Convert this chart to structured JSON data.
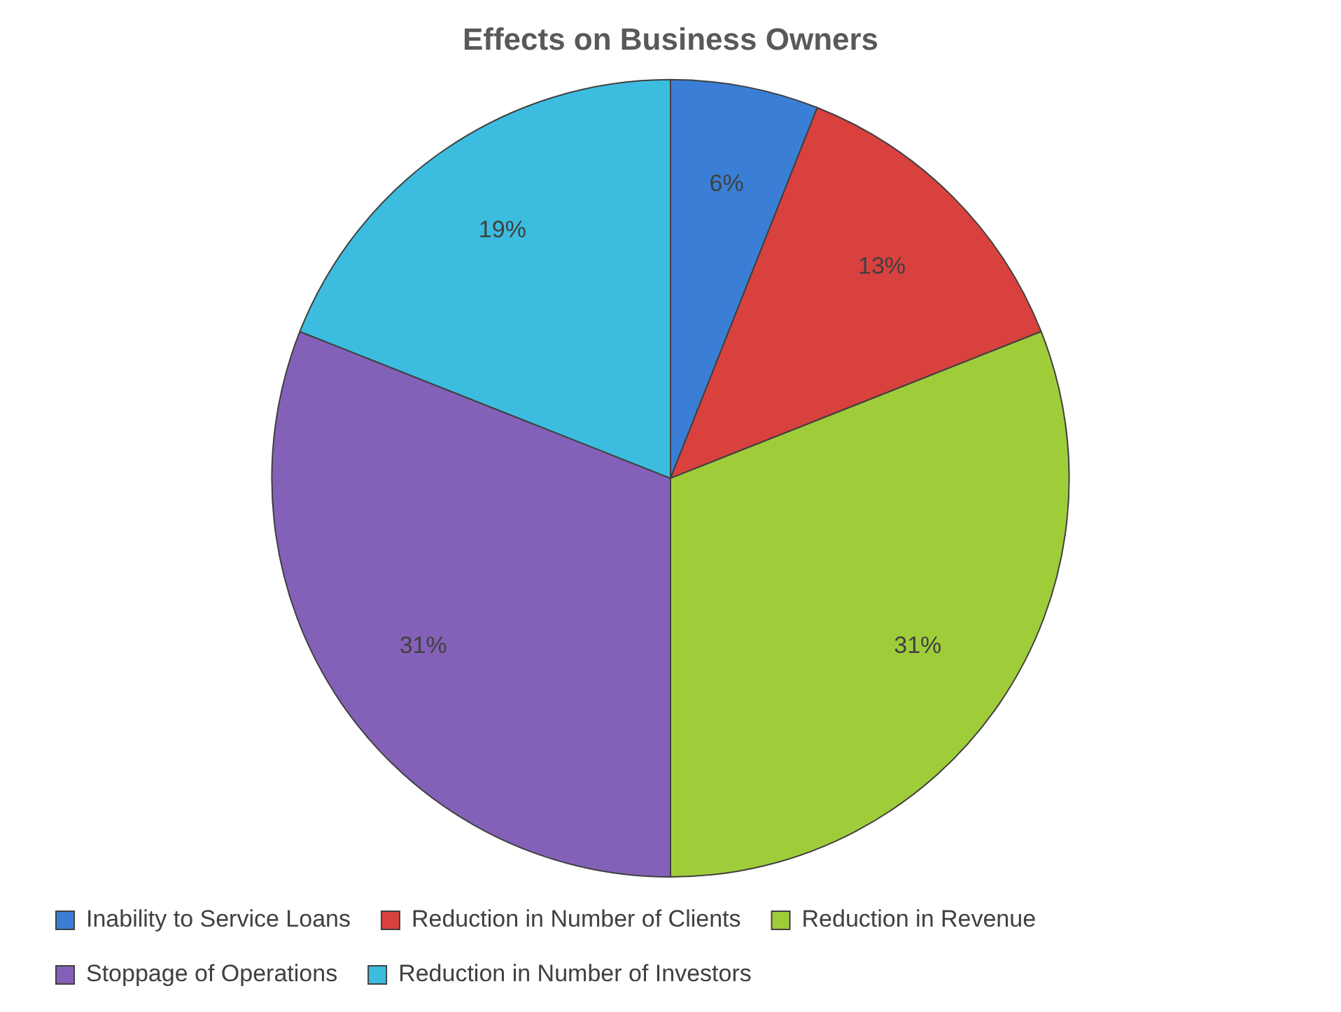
{
  "chart_data": {
    "type": "pie",
    "title": "Effects on Business Owners",
    "categories": [
      "Inability to Service Loans",
      "Reduction in Number of Clients",
      "Reduction in Revenue",
      "Stoppage of Operations",
      "Reduction in Number of Investors"
    ],
    "values": [
      6,
      13,
      31,
      31,
      19
    ],
    "colors": [
      "#3a7fd5",
      "#d9413e",
      "#9fcd3a",
      "#8461b8",
      "#3cbde0"
    ],
    "value_labels": [
      "6%",
      "13%",
      "31%",
      "31%",
      "19%"
    ],
    "legend": "bottom"
  }
}
